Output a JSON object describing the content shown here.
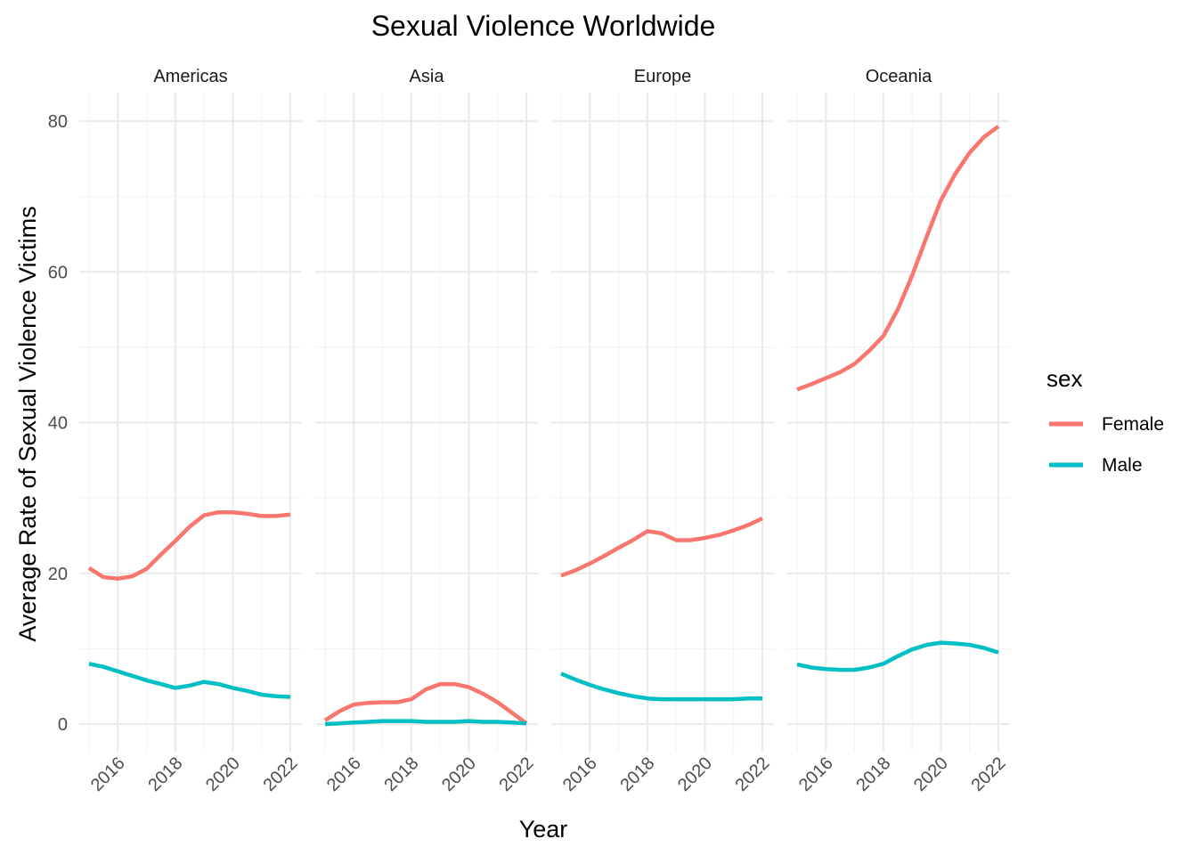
{
  "chart_data": {
    "type": "line",
    "title": "Sexual Violence Worldwide",
    "xlabel": "Year",
    "ylabel": "Average Rate of Sexual Violence Victims",
    "xlim": [
      2015,
      2022
    ],
    "ylim": [
      0,
      80
    ],
    "x_ticks": [
      "2016",
      "2018",
      "2020",
      "2022"
    ],
    "y_ticks": [
      "0",
      "20",
      "40",
      "60",
      "80"
    ],
    "grid": true,
    "legend": {
      "title": "sex",
      "position": "right"
    },
    "series_styles": [
      {
        "name": "Female",
        "color": "#F8766D"
      },
      {
        "name": "Male",
        "color": "#00BFC4"
      }
    ],
    "panels": [
      {
        "name": "Americas",
        "x": [
          2015,
          2015.5,
          2016,
          2016.5,
          2017,
          2017.5,
          2018,
          2018.5,
          2019,
          2019.5,
          2020,
          2020.5,
          2021,
          2021.5,
          2022
        ],
        "series": [
          {
            "name": "Female",
            "values": [
              20.7,
              19.5,
              19.3,
              19.6,
              20.6,
              22.5,
              24.3,
              26.2,
              27.7,
              28.1,
              28.1,
              27.9,
              27.6,
              27.6,
              27.8
            ]
          },
          {
            "name": "Male",
            "values": [
              8.0,
              7.6,
              7.0,
              6.4,
              5.8,
              5.3,
              4.8,
              5.1,
              5.6,
              5.3,
              4.8,
              4.4,
              3.9,
              3.7,
              3.6
            ]
          }
        ]
      },
      {
        "name": "Asia",
        "x": [
          2015,
          2015.5,
          2016,
          2016.5,
          2017,
          2017.5,
          2018,
          2018.5,
          2019,
          2019.5,
          2020,
          2020.5,
          2021,
          2021.5,
          2022
        ],
        "series": [
          {
            "name": "Female",
            "values": [
              0.5,
              1.7,
              2.6,
              2.8,
              2.9,
              2.9,
              3.3,
              4.6,
              5.3,
              5.3,
              4.9,
              4.0,
              2.9,
              1.5,
              0.1
            ]
          },
          {
            "name": "Male",
            "values": [
              0.0,
              0.1,
              0.2,
              0.3,
              0.4,
              0.4,
              0.4,
              0.3,
              0.3,
              0.3,
              0.4,
              0.3,
              0.3,
              0.2,
              0.1
            ]
          }
        ]
      },
      {
        "name": "Europe",
        "x": [
          2015,
          2015.5,
          2016,
          2016.5,
          2017,
          2017.5,
          2018,
          2018.5,
          2019,
          2019.5,
          2020,
          2020.5,
          2021,
          2021.5,
          2022
        ],
        "series": [
          {
            "name": "Female",
            "values": [
              19.7,
              20.4,
              21.3,
              22.3,
              23.4,
              24.4,
              25.6,
              25.3,
              24.4,
              24.4,
              24.7,
              25.1,
              25.7,
              26.4,
              27.3
            ]
          },
          {
            "name": "Male",
            "values": [
              6.7,
              5.9,
              5.2,
              4.6,
              4.1,
              3.7,
              3.4,
              3.3,
              3.3,
              3.3,
              3.3,
              3.3,
              3.3,
              3.4,
              3.4
            ]
          }
        ]
      },
      {
        "name": "Oceania",
        "x": [
          2015,
          2015.5,
          2016,
          2016.5,
          2017,
          2017.5,
          2018,
          2018.5,
          2019,
          2019.5,
          2020,
          2020.5,
          2021,
          2021.5,
          2022
        ],
        "series": [
          {
            "name": "Female",
            "values": [
              44.4,
              45.1,
              45.9,
              46.7,
              47.8,
              49.5,
              51.5,
              55.0,
              59.5,
              64.6,
              69.5,
              73.0,
              75.8,
              77.9,
              79.3
            ]
          },
          {
            "name": "Male",
            "values": [
              7.9,
              7.5,
              7.3,
              7.2,
              7.2,
              7.5,
              8.0,
              9.0,
              9.9,
              10.5,
              10.8,
              10.7,
              10.5,
              10.1,
              9.5
            ]
          }
        ]
      }
    ]
  }
}
